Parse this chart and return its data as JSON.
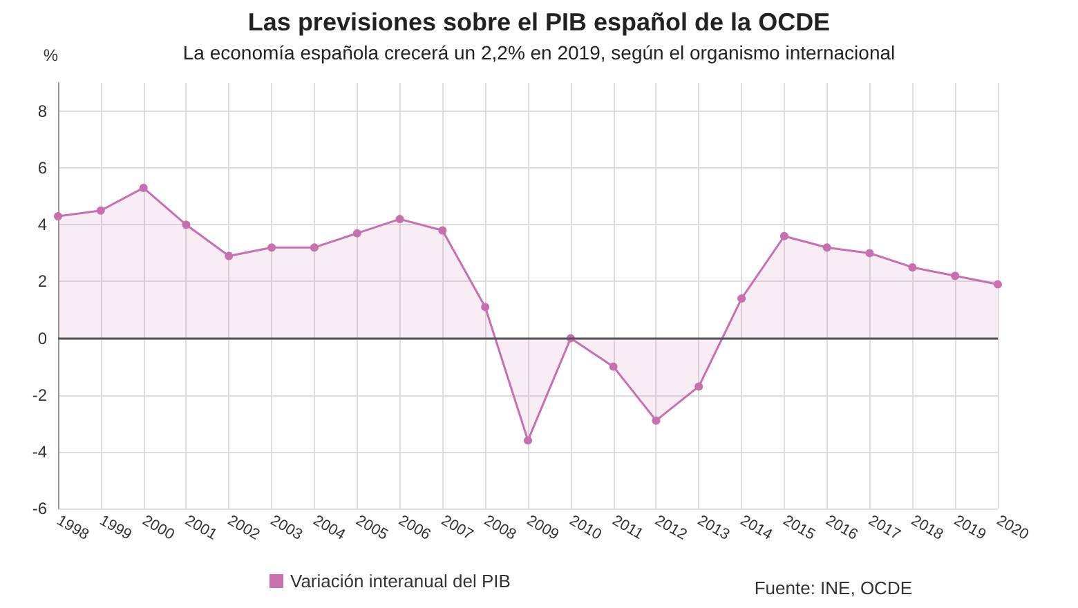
{
  "chart_data": {
    "type": "area",
    "title": "Las previsiones sobre el PIB español de la OCDE",
    "subtitle": "La economía española crecerá un 2,2% en 2019, según el organismo internacional",
    "ylabel": "%",
    "categories": [
      "1998",
      "1999",
      "2000",
      "2001",
      "2002",
      "2003",
      "2004",
      "2005",
      "2006",
      "2007",
      "2008",
      "2009",
      "2010",
      "2011",
      "2012",
      "2013",
      "2014",
      "2015",
      "2016",
      "2017",
      "2018",
      "2019",
      "2020"
    ],
    "series": [
      {
        "name": "Variación interanual del PIB",
        "color": "#c86fb0",
        "values": [
          4.3,
          4.5,
          5.3,
          4.0,
          2.9,
          3.2,
          3.2,
          3.7,
          4.2,
          3.8,
          1.1,
          -3.6,
          0.0,
          -1.0,
          -2.9,
          -1.7,
          1.4,
          3.6,
          3.2,
          3.0,
          2.5,
          2.2,
          1.9
        ]
      }
    ],
    "ylim": [
      -6,
      9
    ],
    "yticks": [
      -6,
      -4,
      -2,
      0,
      2,
      4,
      6,
      8
    ],
    "grid": true,
    "legend": "bottom",
    "marker": "circle",
    "line_style": "solid",
    "ref_lines": [
      {
        "axis": "y",
        "value": 0,
        "color": "#555555"
      }
    ],
    "annotations": [
      "Fuente: INE, OCDE"
    ]
  }
}
